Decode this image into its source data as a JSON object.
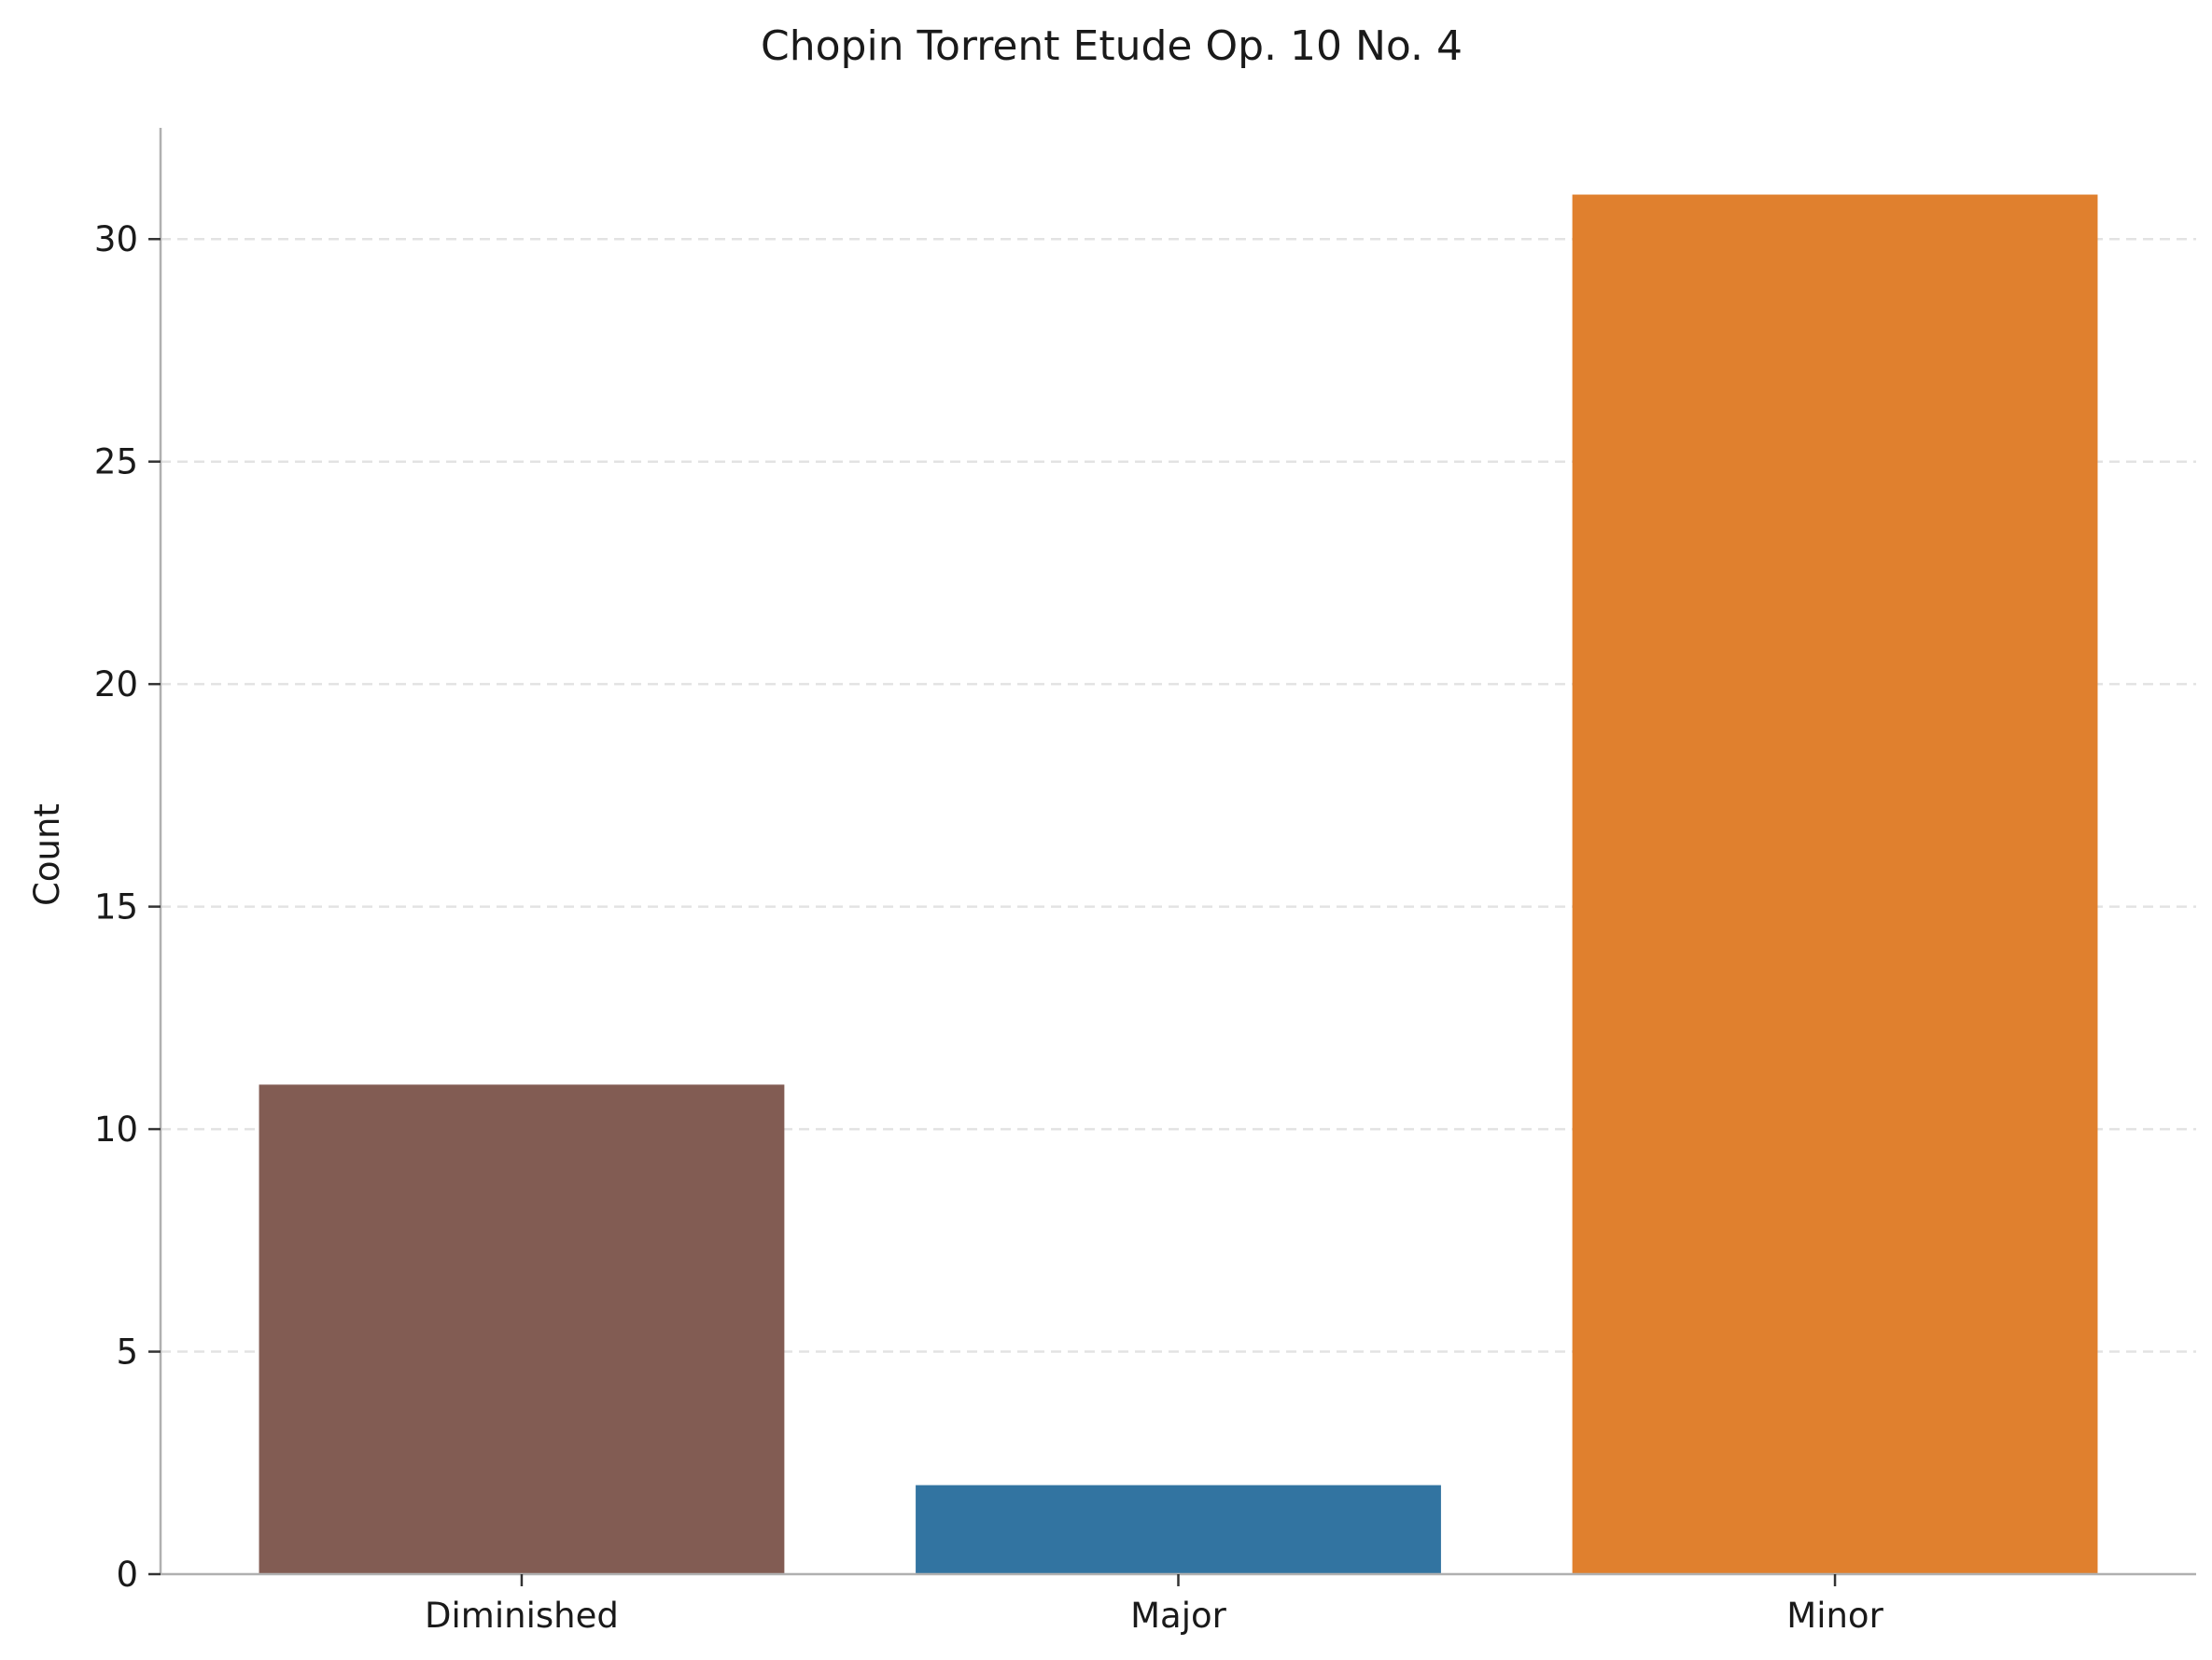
{
  "chart_data": {
    "type": "bar",
    "title": "Chopin Torrent Etude Op. 10 No. 4",
    "xlabel": "",
    "ylabel": "Count",
    "categories": [
      "Diminished",
      "Major",
      "Minor"
    ],
    "values": [
      11,
      2,
      31
    ],
    "colors": [
      "#825c53",
      "#3274a1",
      "#e0802e"
    ],
    "ylim": [
      0,
      32.5
    ],
    "yticks": [
      0,
      5,
      10,
      15,
      20,
      25,
      30
    ],
    "grid": "horizontal dashed",
    "legend": "none"
  }
}
